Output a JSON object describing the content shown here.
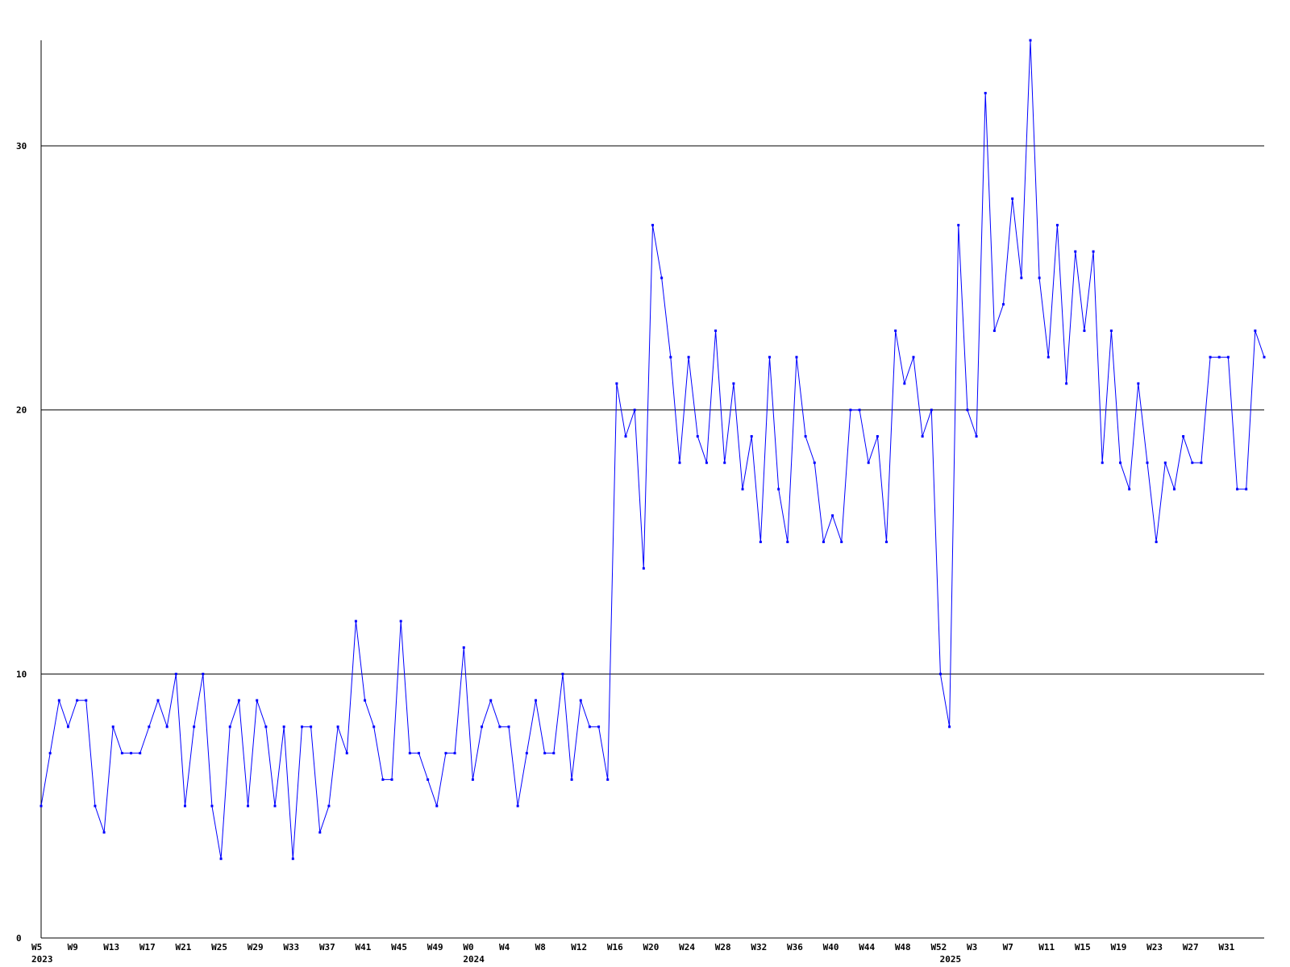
{
  "chart_data": {
    "type": "line",
    "title": "",
    "xlabel": "",
    "ylabel": "",
    "ylim": [
      0,
      34
    ],
    "yticks": [
      0,
      10,
      20,
      30
    ],
    "grid": "horizontal lines at 10, 20, 30",
    "x_tick_labels": [
      "W5",
      "W9",
      "W13",
      "W17",
      "W21",
      "W25",
      "W29",
      "W33",
      "W37",
      "W41",
      "W45",
      "W49",
      "W0",
      "W4",
      "W8",
      "W12",
      "W16",
      "W20",
      "W24",
      "W28",
      "W32",
      "W36",
      "W40",
      "W44",
      "W48",
      "W52",
      "W3",
      "W7",
      "W11",
      "W15",
      "W19",
      "W23",
      "W27",
      "W31"
    ],
    "x_tick_indices": [
      0,
      4,
      8,
      12,
      16,
      20,
      24,
      28,
      32,
      36,
      40,
      44,
      48,
      52,
      56,
      60,
      64,
      68,
      72,
      76,
      80,
      84,
      88,
      92,
      96,
      100,
      104,
      108,
      112,
      116,
      120,
      124,
      128,
      132
    ],
    "year_labels": [
      {
        "label": "2023",
        "index": 0
      },
      {
        "label": "2024",
        "index": 48
      },
      {
        "label": "2025",
        "index": 101
      }
    ],
    "series_color": "#0000ff",
    "values": [
      5,
      7,
      9,
      8,
      9,
      9,
      5,
      4,
      8,
      7,
      7,
      7,
      8,
      9,
      8,
      10,
      5,
      8,
      10,
      5,
      3,
      8,
      9,
      5,
      9,
      8,
      5,
      8,
      3,
      8,
      8,
      4,
      5,
      8,
      7,
      12,
      9,
      8,
      6,
      6,
      12,
      7,
      7,
      6,
      5,
      7,
      7,
      11,
      6,
      8,
      9,
      8,
      8,
      5,
      7,
      9,
      7,
      7,
      10,
      6,
      9,
      8,
      8,
      6,
      21,
      19,
      20,
      14,
      27,
      25,
      22,
      18,
      22,
      19,
      18,
      23,
      18,
      21,
      17,
      19,
      15,
      22,
      17,
      15,
      22,
      19,
      18,
      15,
      16,
      15,
      20,
      20,
      18,
      19,
      15,
      23,
      21,
      22,
      19,
      20,
      10,
      8,
      27,
      20,
      19,
      32,
      23,
      24,
      28,
      25,
      34,
      25,
      22,
      27,
      21,
      26,
      23,
      26,
      18,
      23,
      18,
      17,
      21,
      18,
      15,
      18,
      17,
      19,
      18,
      18,
      22,
      22,
      22,
      17,
      17,
      23,
      22
    ]
  }
}
